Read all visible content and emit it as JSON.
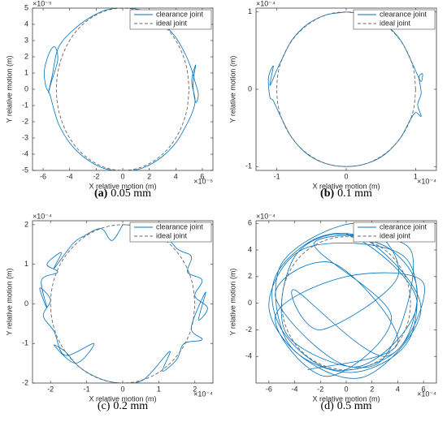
{
  "chart_data": [
    {
      "type": "line",
      "panel": "(a)",
      "panel_bold": true,
      "caption": "0.05 mm",
      "x_label": "X relative motion (m)",
      "y_label": "Y relative motion (m)",
      "x_exponent": "×10⁻⁵",
      "y_exponent": "×10⁻⁵",
      "xlim": [
        -6.8,
        6.8
      ],
      "ylim": [
        -5,
        5
      ],
      "xticks": [
        -6,
        -4,
        -2,
        0,
        2,
        4,
        6
      ],
      "yticks": [
        -5,
        -4,
        -3,
        -2,
        -1,
        0,
        1,
        2,
        3,
        4,
        5
      ],
      "legend": "upper right",
      "series": [
        {
          "name": "clearance joint",
          "color": "#0072bd",
          "dashed": false,
          "x": [
            0,
            1.5,
            2.8,
            3.9,
            4.7,
            5.2,
            5.4,
            5.7,
            5.5,
            5.3,
            5.5,
            5.2,
            5.45,
            5.3,
            4.8,
            4.0,
            2.9,
            1.5,
            0,
            -1.5,
            -2.9,
            -4.0,
            -4.8,
            -5.2,
            -5.5,
            -5.8,
            -5.9,
            -5.5,
            -5.1,
            -4.9,
            -5.4,
            -5.6,
            -5.3,
            -5.0,
            -4.6,
            -3.8,
            -2.7,
            -1.4,
            0
          ],
          "values": [
            5.05,
            4.85,
            4.2,
            3.3,
            2.2,
            1.2,
            0.6,
            -0.3,
            -0.8,
            0.3,
            1.5,
            0.5,
            -0.6,
            -1.3,
            -2.2,
            -3.3,
            -4.2,
            -4.85,
            -5.05,
            -4.85,
            -4.2,
            -3.3,
            -2.2,
            -1.2,
            -0.3,
            0.2,
            1.2,
            2.3,
            2.6,
            1.8,
            0.4,
            -0.2,
            0.9,
            2.2,
            2.9,
            3.6,
            4.3,
            4.85,
            5.05
          ]
        },
        {
          "name": "ideal joint",
          "color": "#666666",
          "dashed": true,
          "x": [
            5,
            4.83,
            4.33,
            3.54,
            2.5,
            1.29,
            0,
            -1.29,
            -2.5,
            -3.54,
            -4.33,
            -4.83,
            -5,
            -4.83,
            -4.33,
            -3.54,
            -2.5,
            -1.29,
            0,
            1.29,
            2.5,
            3.54,
            4.33,
            4.83,
            5
          ],
          "values": [
            0,
            1.29,
            2.5,
            3.54,
            4.33,
            4.83,
            5,
            4.83,
            4.33,
            3.54,
            2.5,
            1.29,
            0,
            -1.29,
            -2.5,
            -3.54,
            -4.33,
            -4.83,
            -5,
            -4.83,
            -4.33,
            -3.54,
            -2.5,
            -1.29,
            0
          ]
        }
      ]
    },
    {
      "type": "line",
      "panel": "(b)",
      "panel_bold": true,
      "caption": "0.1 mm",
      "x_label": "X relative motion (m)",
      "y_label": "Y relative motion (m)",
      "x_exponent": "×10⁻⁴",
      "y_exponent": "×10⁻⁴",
      "xlim": [
        -1.3,
        1.3
      ],
      "ylim": [
        -1.05,
        1.05
      ],
      "xticks": [
        -1,
        0,
        1
      ],
      "yticks": [
        -1,
        0,
        1
      ],
      "legend": "upper right",
      "series": [
        {
          "name": "clearance joint",
          "color": "#0072bd",
          "dashed": false,
          "x": [
            0,
            0.3,
            0.56,
            0.78,
            0.93,
            1.02,
            1.08,
            1.1,
            1.05,
            1.08,
            1.03,
            1.08,
            1.0,
            0.92,
            0.78,
            0.56,
            0.3,
            0,
            -0.3,
            -0.56,
            -0.78,
            -0.93,
            -1.05,
            -1.1,
            -1.12,
            -1.05,
            -1.1,
            -1.0,
            -0.92,
            -0.78,
            -0.56,
            -0.3,
            0
          ],
          "values": [
            1.0,
            0.96,
            0.84,
            0.64,
            0.38,
            0.2,
            0.1,
            0.2,
            0.15,
            -0.05,
            -0.2,
            -0.35,
            -0.3,
            -0.4,
            -0.63,
            -0.84,
            -0.96,
            -1.0,
            -0.96,
            -0.84,
            -0.63,
            -0.38,
            -0.15,
            -0.1,
            0.15,
            0.3,
            0.05,
            0.25,
            0.4,
            0.64,
            0.84,
            0.96,
            1.0
          ]
        },
        {
          "name": "ideal joint",
          "color": "#666666",
          "dashed": true,
          "x": [
            1,
            0.97,
            0.87,
            0.71,
            0.5,
            0.26,
            0,
            -0.26,
            -0.5,
            -0.71,
            -0.87,
            -0.97,
            -1,
            -0.97,
            -0.87,
            -0.71,
            -0.5,
            -0.26,
            0,
            0.26,
            0.5,
            0.71,
            0.87,
            0.97,
            1
          ],
          "values": [
            0,
            0.26,
            0.5,
            0.71,
            0.87,
            0.97,
            1,
            0.97,
            0.87,
            0.71,
            0.5,
            0.26,
            0,
            -0.26,
            -0.5,
            -0.71,
            -0.87,
            -0.97,
            -1,
            -0.97,
            -0.87,
            -0.71,
            -0.5,
            -0.26,
            0
          ]
        }
      ]
    },
    {
      "type": "line",
      "panel": "(c)",
      "panel_bold": false,
      "caption": "0.2 mm",
      "x_label": "X relative motion (m)",
      "y_label": "Y relative motion (m)",
      "x_exponent": "×10⁻⁴",
      "y_exponent": "×10⁻⁴",
      "xlim": [
        -2.5,
        2.5
      ],
      "ylim": [
        -2,
        2.1
      ],
      "xticks": [
        -2,
        -1,
        0,
        1,
        2
      ],
      "yticks": [
        -2,
        -1,
        0,
        1,
        2
      ],
      "legend": "upper right",
      "series": [
        {
          "name": "clearance joint",
          "color": "#0072bd",
          "dashed": false,
          "x": [
            0,
            0.6,
            1.1,
            1.0,
            1.5,
            1.9,
            1.8,
            2.2,
            2.0,
            2.35,
            2.1,
            2.3,
            1.9,
            2.2,
            1.7,
            1.5,
            1.1,
            1.3,
            0.6,
            0,
            -0.6,
            -1.2,
            -1.6,
            -1.9,
            -1.3,
            -0.8,
            -1.6,
            -1.9,
            -2.2,
            -2.0,
            -2.3,
            -2.1,
            -2.25,
            -1.8,
            -2.1,
            -1.7,
            -1.9,
            -1.4,
            -1.1,
            -0.6,
            -0.3,
            0
          ],
          "values": [
            2.0,
            1.95,
            1.7,
            1.95,
            1.4,
            1.2,
            0.8,
            0.6,
            0.2,
            -0.1,
            -0.4,
            0.3,
            -0.6,
            -0.9,
            -1.0,
            -1.4,
            -1.7,
            -1.2,
            -1.9,
            -2.0,
            -1.9,
            -1.6,
            -1.2,
            -1.05,
            -1.5,
            -1.0,
            -1.3,
            -0.7,
            -0.3,
            0.1,
            0.4,
            -0.1,
            0.6,
            0.8,
            1.0,
            1.3,
            0.9,
            1.5,
            1.7,
            1.9,
            1.6,
            2.0
          ]
        },
        {
          "name": "ideal joint",
          "color": "#666666",
          "dashed": true,
          "x": [
            2,
            1.93,
            1.73,
            1.41,
            1,
            0.52,
            0,
            -0.52,
            -1,
            -1.41,
            -1.73,
            -1.93,
            -2,
            -1.93,
            -1.73,
            -1.41,
            -1,
            -0.52,
            0,
            0.52,
            1,
            1.41,
            1.73,
            1.93,
            2
          ],
          "values": [
            0,
            0.52,
            1,
            1.41,
            1.73,
            1.93,
            2,
            1.93,
            1.73,
            1.41,
            1,
            0.52,
            0,
            -0.52,
            -1,
            -1.41,
            -1.73,
            -1.93,
            -2,
            -1.93,
            -1.73,
            -1.41,
            -1,
            -0.52,
            0
          ]
        }
      ]
    },
    {
      "type": "line",
      "panel": "(d)",
      "panel_bold": false,
      "caption": "0.5 mm",
      "x_label": "X relative motion (m)",
      "y_label": "Y relative motion (m)",
      "x_exponent": "×10⁻⁴",
      "y_exponent": "×10⁻⁴",
      "xlim": [
        -7,
        7
      ],
      "ylim": [
        -6,
        6.2
      ],
      "xticks": [
        -6,
        -4,
        -2,
        0,
        2,
        4,
        6
      ],
      "yticks": [
        -4,
        -2,
        0,
        2,
        4,
        6
      ],
      "legend": "upper right",
      "series": [
        {
          "name": "clearance joint",
          "color": "#0072bd",
          "dashed": false,
          "x": [
            0,
            3.5,
            5.5,
            4.0,
            -1.0,
            -5.0,
            -5.5,
            -2.0,
            2.0,
            5.8,
            1.5,
            -3.5,
            -6.0,
            -3.0,
            4.5,
            5.0,
            0.5,
            -4.5,
            -5.0,
            1.0,
            4.0,
            -2.0,
            -4.0,
            3.0,
            6.0,
            0.0,
            -5.5,
            -1.5,
            3.5,
            -2.5,
            5.0,
            2.5,
            -4.5,
            -4.0,
            0.5,
            5.5,
            0.5,
            -5.5,
            -1.0,
            4.0,
            -3.0
          ],
          "values": [
            5.2,
            4.0,
            1.0,
            -3.5,
            -5.0,
            -2.0,
            2.0,
            5.0,
            4.5,
            -0.5,
            -5.5,
            -4.0,
            0.0,
            4.2,
            3.5,
            -2.5,
            -5.2,
            -3.0,
            3.0,
            6.0,
            2.0,
            -2.0,
            1.0,
            -4.0,
            1.5,
            2.0,
            -1.0,
            -5.5,
            -1.0,
            4.5,
            4.0,
            -4.5,
            -2.5,
            3.5,
            5.0,
            0.0,
            -4.8,
            0.5,
            3.0,
            -3.0,
            -5.0
          ]
        },
        {
          "name": "ideal joint",
          "color": "#666666",
          "dashed": true,
          "x": [
            5,
            4.83,
            4.33,
            3.54,
            2.5,
            1.29,
            0,
            -1.29,
            -2.5,
            -3.54,
            -4.33,
            -4.83,
            -5,
            -4.83,
            -4.33,
            -3.54,
            -2.5,
            -1.29,
            0,
            1.29,
            2.5,
            3.54,
            4.33,
            4.83,
            5
          ],
          "values": [
            0,
            1.29,
            2.5,
            3.54,
            4.33,
            4.83,
            5,
            4.83,
            4.33,
            3.54,
            2.5,
            1.29,
            0,
            -1.29,
            -2.5,
            -3.54,
            -4.33,
            -4.83,
            -5,
            -4.83,
            -4.33,
            -3.54,
            -2.5,
            -1.29,
            0
          ]
        }
      ]
    }
  ]
}
